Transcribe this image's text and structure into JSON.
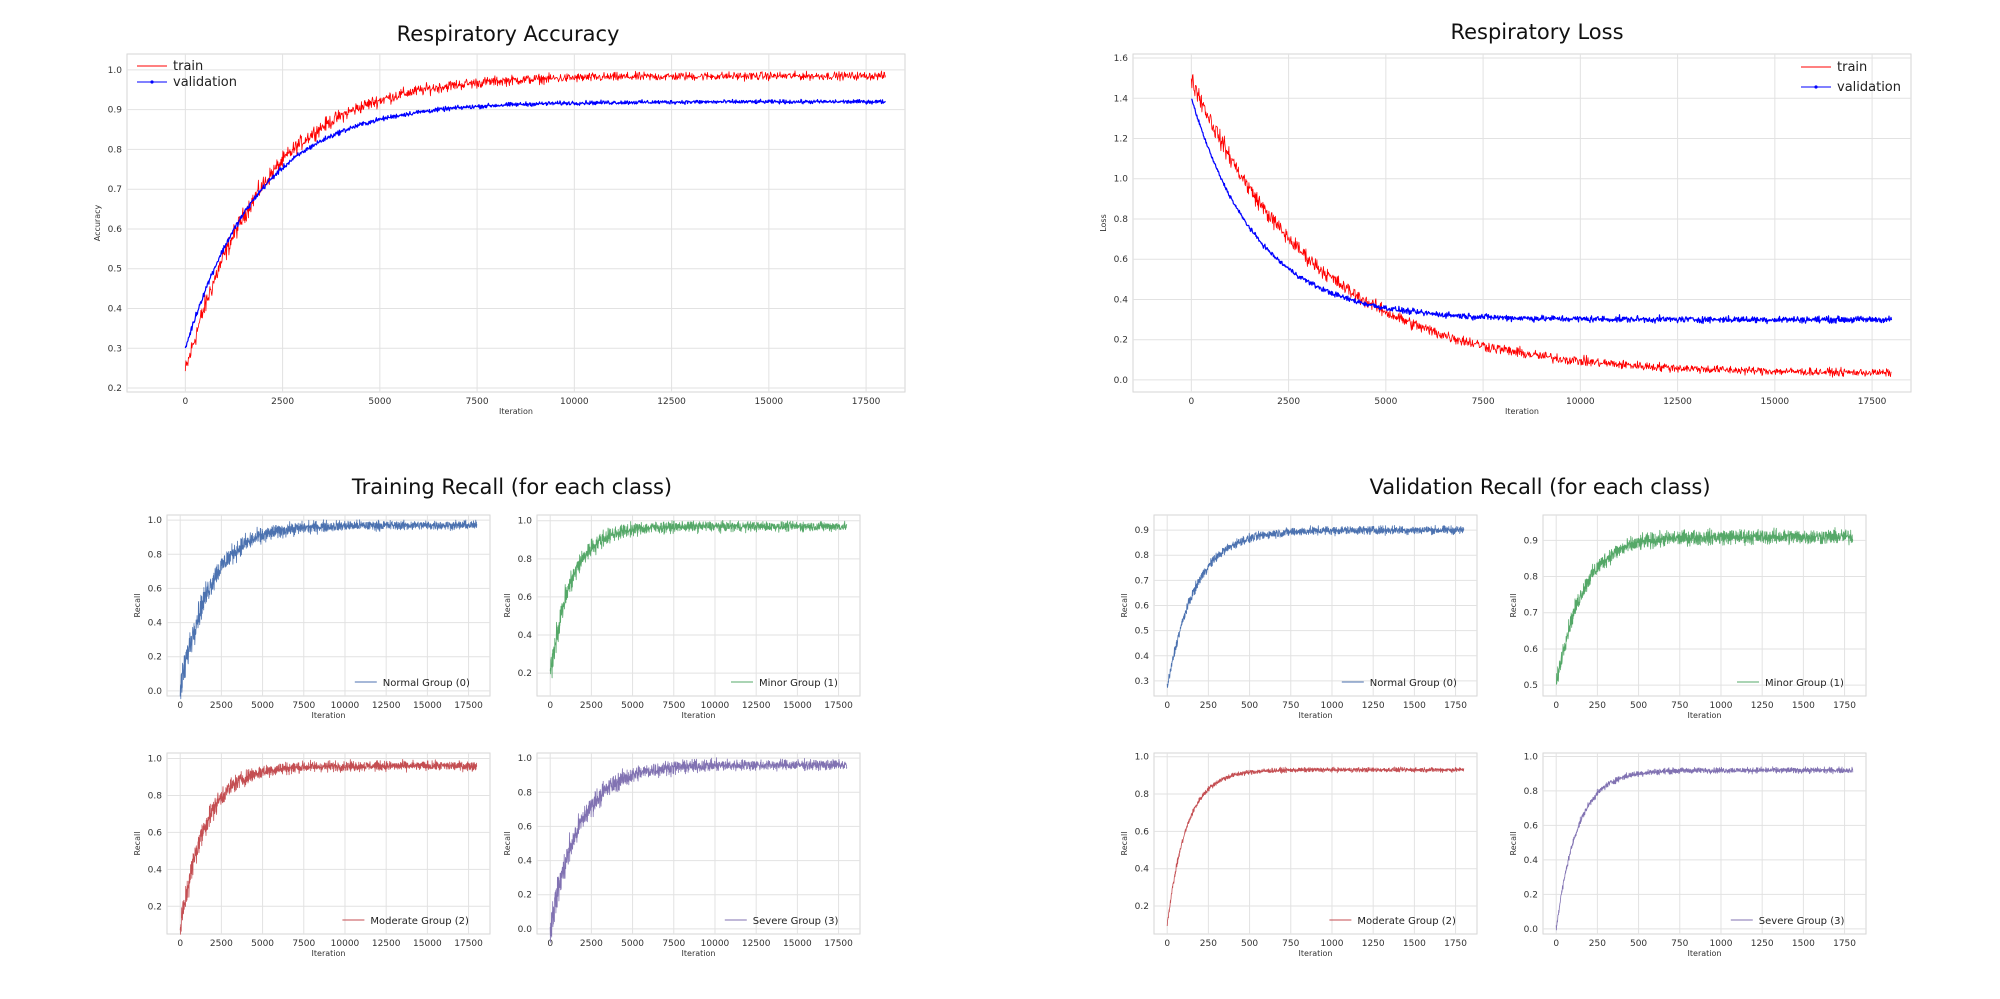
{
  "chart_data": [
    {
      "id": "acc",
      "type": "line",
      "title": "Respiratory Accuracy",
      "xlabel": "Iteration",
      "ylabel": "Accuracy",
      "xlim": [
        -1500,
        18500
      ],
      "ylim": [
        0.19,
        1.04
      ],
      "xticks": [
        0,
        2500,
        5000,
        7500,
        10000,
        12500,
        15000,
        17500
      ],
      "yticks": [
        0.2,
        0.3,
        0.4,
        0.5,
        0.6,
        0.7,
        0.8,
        0.9,
        1.0
      ],
      "legend_position": "top-left",
      "legend_size": "big",
      "series": [
        {
          "name": "train",
          "color": "#ff0000",
          "x_max": 18000,
          "start": 0.24,
          "end": 0.985,
          "tau": 2000,
          "noise": 0.035,
          "noise_end": 0.012
        },
        {
          "name": "validation",
          "color": "#0000ff",
          "marker": true,
          "x_max": 18000,
          "start": 0.3,
          "end": 0.92,
          "tau": 1900,
          "noise": 0.01,
          "noise_end": 0.006
        }
      ]
    },
    {
      "id": "loss",
      "type": "line",
      "title": "Respiratory Loss",
      "xlabel": "Iteration",
      "ylabel": "Loss",
      "xlim": [
        -1500,
        18500
      ],
      "ylim": [
        -0.06,
        1.62
      ],
      "xticks": [
        0,
        2500,
        5000,
        7500,
        10000,
        12500,
        15000,
        17500
      ],
      "yticks": [
        0.0,
        0.2,
        0.4,
        0.6,
        0.8,
        1.0,
        1.2,
        1.4,
        1.6
      ],
      "legend_position": "top-right",
      "legend_size": "big",
      "series": [
        {
          "name": "train",
          "color": "#ff0000",
          "x_max": 18000,
          "start": 1.5,
          "end": 0.03,
          "tau": 3200,
          "noise": 0.06,
          "noise_end": 0.02
        },
        {
          "name": "validation",
          "color": "#0000ff",
          "marker": true,
          "x_max": 18000,
          "start": 1.4,
          "end": 0.3,
          "tau": 1700,
          "noise": 0.01,
          "noise_end": 0.02
        }
      ]
    },
    {
      "id": "tr0",
      "type": "line",
      "title": "Training Recall (for each class)",
      "xlabel": "Iteration",
      "ylabel": "Recall",
      "xlim": [
        -800,
        18800
      ],
      "ylim": [
        -0.03,
        1.03
      ],
      "xticks": [
        0,
        2500,
        5000,
        7500,
        10000,
        12500,
        15000,
        17500
      ],
      "yticks": [
        0.0,
        0.2,
        0.4,
        0.6,
        0.8,
        1.0
      ],
      "legend_position": "bottom-right",
      "legend_size": "small",
      "series": [
        {
          "name": "Normal Group (0)",
          "color": "#4c72b0",
          "x_max": 18000,
          "start": 0.0,
          "end": 0.97,
          "tau": 1800,
          "noise": 0.12,
          "noise_end": 0.03
        }
      ]
    },
    {
      "id": "tr1",
      "type": "line",
      "xlabel": "Iteration",
      "ylabel": "Recall",
      "xlim": [
        -800,
        18800
      ],
      "ylim": [
        0.08,
        1.03
      ],
      "xticks": [
        0,
        2500,
        5000,
        7500,
        10000,
        12500,
        15000,
        17500
      ],
      "yticks": [
        0.2,
        0.4,
        0.6,
        0.8,
        1.0
      ],
      "legend_position": "bottom-right",
      "legend_size": "small",
      "series": [
        {
          "name": "Minor Group (1)",
          "color": "#55a868",
          "x_max": 18000,
          "start": 0.2,
          "end": 0.97,
          "tau": 1300,
          "noise": 0.1,
          "noise_end": 0.03
        }
      ]
    },
    {
      "id": "tr2",
      "type": "line",
      "xlabel": "Iteration",
      "ylabel": "Recall",
      "xlim": [
        -800,
        18800
      ],
      "ylim": [
        0.05,
        1.03
      ],
      "xticks": [
        0,
        2500,
        5000,
        7500,
        10000,
        12500,
        15000,
        17500
      ],
      "yticks": [
        0.2,
        0.4,
        0.6,
        0.8,
        1.0
      ],
      "legend_position": "bottom-right",
      "legend_size": "small",
      "series": [
        {
          "name": "Moderate Group (2)",
          "color": "#c44e52",
          "x_max": 18000,
          "start": 0.07,
          "end": 0.96,
          "tau": 1500,
          "noise": 0.1,
          "noise_end": 0.03
        }
      ]
    },
    {
      "id": "tr3",
      "type": "line",
      "xlabel": "Iteration",
      "ylabel": "Recall",
      "xlim": [
        -800,
        18800
      ],
      "ylim": [
        -0.03,
        1.03
      ],
      "xticks": [
        0,
        2500,
        5000,
        7500,
        10000,
        12500,
        15000,
        17500
      ],
      "yticks": [
        0.0,
        0.2,
        0.4,
        0.6,
        0.8,
        1.0
      ],
      "legend_position": "bottom-right",
      "legend_size": "small",
      "series": [
        {
          "name": "Severe Group (3)",
          "color": "#8172b2",
          "x_max": 18000,
          "start": 0.0,
          "end": 0.96,
          "tau": 1800,
          "noise": 0.12,
          "noise_end": 0.035
        }
      ]
    },
    {
      "id": "va0",
      "type": "line",
      "title": "Validation Recall (for each class)",
      "xlabel": "Iteration",
      "ylabel": "Recall",
      "xlim": [
        -80,
        1880
      ],
      "ylim": [
        0.24,
        0.96
      ],
      "xticks": [
        0,
        250,
        500,
        750,
        1000,
        1250,
        1500,
        1750
      ],
      "yticks": [
        0.3,
        0.4,
        0.5,
        0.6,
        0.7,
        0.8,
        0.9
      ],
      "legend_position": "bottom-right",
      "legend_size": "small",
      "series": [
        {
          "name": "Normal Group (0)",
          "color": "#4c72b0",
          "x_max": 1800,
          "start": 0.27,
          "end": 0.9,
          "tau": 170,
          "noise": 0.025,
          "noise_end": 0.02
        }
      ]
    },
    {
      "id": "va1",
      "type": "line",
      "xlabel": "Iteration",
      "ylabel": "Recall",
      "xlim": [
        -80,
        1880
      ],
      "ylim": [
        0.47,
        0.97
      ],
      "xticks": [
        0,
        250,
        500,
        750,
        1000,
        1250,
        1500,
        1750
      ],
      "yticks": [
        0.5,
        0.6,
        0.7,
        0.8,
        0.9
      ],
      "legend_position": "bottom-right",
      "legend_size": "small",
      "series": [
        {
          "name": "Minor Group (1)",
          "color": "#55a868",
          "x_max": 1800,
          "start": 0.5,
          "end": 0.91,
          "tau": 160,
          "noise": 0.03,
          "noise_end": 0.025
        }
      ]
    },
    {
      "id": "va2",
      "type": "line",
      "xlabel": "Iteration",
      "ylabel": "Recall",
      "xlim": [
        -80,
        1880
      ],
      "ylim": [
        0.05,
        1.02
      ],
      "xticks": [
        0,
        250,
        500,
        750,
        1000,
        1250,
        1500,
        1750
      ],
      "yticks": [
        0.2,
        0.4,
        0.6,
        0.8,
        1.0
      ],
      "legend_position": "bottom-right",
      "legend_size": "small",
      "series": [
        {
          "name": "Moderate Group (2)",
          "color": "#c44e52",
          "x_max": 1800,
          "start": 0.1,
          "end": 0.93,
          "tau": 120,
          "noise": 0.02,
          "noise_end": 0.015
        }
      ]
    },
    {
      "id": "va3",
      "type": "line",
      "xlabel": "Iteration",
      "ylabel": "Recall",
      "xlim": [
        -80,
        1880
      ],
      "ylim": [
        -0.03,
        1.02
      ],
      "xticks": [
        0,
        250,
        500,
        750,
        1000,
        1250,
        1500,
        1750
      ],
      "yticks": [
        0.0,
        0.2,
        0.4,
        0.6,
        0.8,
        1.0
      ],
      "legend_position": "bottom-right",
      "legend_size": "small",
      "series": [
        {
          "name": "Severe Group (3)",
          "color": "#8172b2",
          "x_max": 1800,
          "start": 0.0,
          "end": 0.92,
          "tau": 130,
          "noise": 0.025,
          "noise_end": 0.02
        }
      ]
    }
  ]
}
